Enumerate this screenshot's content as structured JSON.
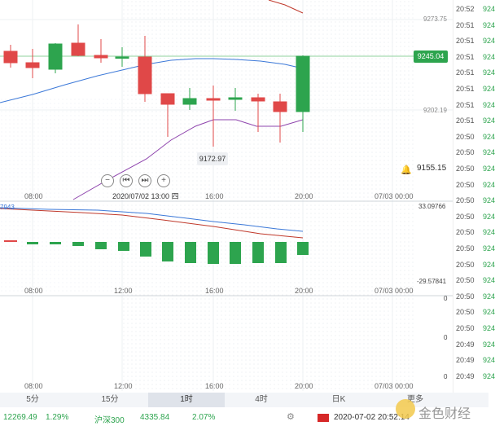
{
  "main_chart": {
    "price_labels": [
      "9273.75",
      "9202.19"
    ],
    "current_price": "9245.04",
    "low_tooltip": "9172.97",
    "alert_price": "9155.15",
    "crosshair_date": "2020/07/02 13:00 四",
    "x_labels": [
      "08:00",
      "16:00",
      "20:00",
      "07/03 00:00"
    ],
    "nav_buttons": [
      "−",
      "⏮",
      "⏭",
      "+"
    ]
  },
  "macd_chart": {
    "left_value": "7943",
    "top_value": "33.09766",
    "bottom_value": "-29.57841",
    "x_labels": [
      "08:00",
      "12:00",
      "16:00",
      "20:00",
      "07/03 00:00"
    ]
  },
  "third_chart": {
    "axis_values": [
      "0",
      "0",
      "0"
    ],
    "x_labels": [
      "08:00",
      "12:00",
      "16:00",
      "20:00",
      "07/03 00:00"
    ]
  },
  "right_panel": {
    "rows": [
      {
        "time": "20:52",
        "price": "924"
      },
      {
        "time": "20:51",
        "price": "924"
      },
      {
        "time": "20:51",
        "price": "924"
      },
      {
        "time": "20:51",
        "price": "924"
      },
      {
        "time": "20:51",
        "price": "924"
      },
      {
        "time": "20:51",
        "price": "924"
      },
      {
        "time": "20:51",
        "price": "924"
      },
      {
        "time": "20:51",
        "price": "924"
      },
      {
        "time": "20:50",
        "price": "924"
      },
      {
        "time": "20:50",
        "price": "924"
      },
      {
        "time": "20:50",
        "price": "924"
      },
      {
        "time": "20:50",
        "price": "924"
      },
      {
        "time": "20:50",
        "price": "924"
      },
      {
        "time": "20:50",
        "price": "924"
      },
      {
        "time": "20:50",
        "price": "924"
      },
      {
        "time": "20:50",
        "price": "924"
      },
      {
        "time": "20:50",
        "price": "924"
      },
      {
        "time": "20:50",
        "price": "924"
      },
      {
        "time": "20:50",
        "price": "924"
      },
      {
        "time": "20:50",
        "price": "924"
      },
      {
        "time": "20:50",
        "price": "924"
      },
      {
        "time": "20:49",
        "price": "924"
      },
      {
        "time": "20:49",
        "price": "924"
      },
      {
        "time": "20:49",
        "price": "924"
      }
    ]
  },
  "tabs": [
    {
      "label": "5分"
    },
    {
      "label": "15分"
    },
    {
      "label": "1时"
    },
    {
      "label": "4时"
    },
    {
      "label": "日K"
    },
    {
      "label": "更多"
    }
  ],
  "status_bar": {
    "index1_value": "12269.49",
    "index1_change": "1.29%",
    "index2_name": "沪深300",
    "index2_value": "4335.84",
    "index2_change": "2.07%",
    "datetime": "2020-07-02 20:52:14",
    "watermark": "金色财经"
  }
}
